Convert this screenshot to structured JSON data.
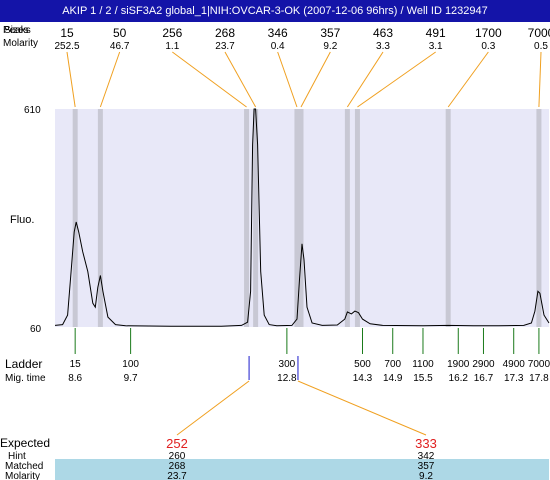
{
  "title": "AKIP 1 / 2 / siSF3A2 global_1|NIH:OVCAR-3-OK (2007-12-06 96hrs) / Well ID 1232947",
  "row_labels": {
    "peaks_overlap_a": "Peaks",
    "peaks_overlap_b": "Sizes",
    "molarity": "Molarity",
    "fluo": "Fluo.",
    "ladder": "Ladder",
    "mig_time": "Mig. time",
    "expected": "Expected",
    "hint": "Hint",
    "matched": "Matched",
    "molarity_bottom": "Molarity"
  },
  "colors": {
    "plot_bg": "#e8e8f8",
    "trace": "#000000",
    "peak_band": "#c8c8d4",
    "guide_line": "#f0a020",
    "ladder_tick": "#1a7a1a",
    "marker_tick": "#1a1acc",
    "expected_value": "#e02020",
    "matched_band": "#add8e6",
    "title_bg": "#1414a8"
  },
  "chart_data": {
    "type": "line",
    "title": "",
    "ylabel": "Fluo.",
    "ylim": [
      60,
      610
    ],
    "y_ticks": [
      "610",
      "60"
    ],
    "xlabel": "Mig. time",
    "xlim": [
      8.2,
      18.0
    ],
    "peaks": [
      {
        "size": "15",
        "molarity": "252.5",
        "mig_time": 8.6
      },
      {
        "size": "50",
        "molarity": "46.7",
        "mig_time": 9.1
      },
      {
        "size": "256",
        "molarity": "1.1",
        "mig_time": 12.0
      },
      {
        "size": "268",
        "molarity": "23.7",
        "mig_time": 12.18
      },
      {
        "size": "346",
        "molarity": "0.4",
        "mig_time": 13.0
      },
      {
        "size": "357",
        "molarity": "9.2",
        "mig_time": 13.08
      },
      {
        "size": "463",
        "molarity": "3.3",
        "mig_time": 14.0
      },
      {
        "size": "491",
        "molarity": "3.1",
        "mig_time": 14.2
      },
      {
        "size": "1700",
        "molarity": "0.3",
        "mig_time": 16.0
      },
      {
        "size": "7000",
        "molarity": "0.5",
        "mig_time": 17.8
      }
    ],
    "ladder": [
      {
        "size": "15",
        "mig_time": "8.6",
        "t": 8.6
      },
      {
        "size": "100",
        "mig_time": "9.7",
        "t": 9.7
      },
      {
        "size": "300",
        "mig_time": "12.8",
        "t": 12.8
      },
      {
        "size": "500",
        "mig_time": "14.3",
        "t": 14.3
      },
      {
        "size": "700",
        "mig_time": "14.9",
        "t": 14.9
      },
      {
        "size": "1100",
        "mig_time": "15.5",
        "t": 15.5
      },
      {
        "size": "1900",
        "mig_time": "16.2",
        "t": 16.2
      },
      {
        "size": "2900",
        "mig_time": "16.7",
        "t": 16.7
      },
      {
        "size": "4900",
        "mig_time": "17.3",
        "t": 17.3
      },
      {
        "size": "7000",
        "mig_time": "17.8",
        "t": 17.8
      }
    ],
    "blue_markers": [
      12.05,
      13.02
    ],
    "trace": [
      [
        8.2,
        64
      ],
      [
        8.35,
        66
      ],
      [
        8.45,
        90
      ],
      [
        8.52,
        200
      ],
      [
        8.58,
        300
      ],
      [
        8.62,
        325
      ],
      [
        8.67,
        300
      ],
      [
        8.75,
        250
      ],
      [
        8.85,
        200
      ],
      [
        8.95,
        120
      ],
      [
        9.0,
        110
      ],
      [
        9.05,
        160
      ],
      [
        9.1,
        190
      ],
      [
        9.15,
        150
      ],
      [
        9.25,
        85
      ],
      [
        9.4,
        66
      ],
      [
        9.6,
        63
      ],
      [
        10.5,
        62
      ],
      [
        11.5,
        62
      ],
      [
        11.9,
        64
      ],
      [
        12.02,
        72
      ],
      [
        12.08,
        150
      ],
      [
        12.12,
        520
      ],
      [
        12.15,
        610
      ],
      [
        12.18,
        610
      ],
      [
        12.22,
        520
      ],
      [
        12.28,
        200
      ],
      [
        12.35,
        90
      ],
      [
        12.45,
        66
      ],
      [
        12.6,
        63
      ],
      [
        12.9,
        64
      ],
      [
        13.0,
        80
      ],
      [
        13.05,
        180
      ],
      [
        13.1,
        270
      ],
      [
        13.14,
        230
      ],
      [
        13.2,
        110
      ],
      [
        13.3,
        70
      ],
      [
        13.5,
        64
      ],
      [
        13.8,
        65
      ],
      [
        13.95,
        80
      ],
      [
        14.0,
        98
      ],
      [
        14.08,
        93
      ],
      [
        14.15,
        100
      ],
      [
        14.22,
        96
      ],
      [
        14.3,
        80
      ],
      [
        14.45,
        68
      ],
      [
        14.7,
        64
      ],
      [
        15.5,
        63
      ],
      [
        16.0,
        64
      ],
      [
        16.5,
        63
      ],
      [
        17.0,
        63
      ],
      [
        17.5,
        64
      ],
      [
        17.65,
        70
      ],
      [
        17.72,
        100
      ],
      [
        17.78,
        150
      ],
      [
        17.82,
        145
      ],
      [
        17.9,
        90
      ],
      [
        18.0,
        70
      ]
    ],
    "expected": [
      {
        "expected": "252",
        "hint": "260",
        "matched": "268",
        "molarity": "23.7",
        "peak_index": 3
      },
      {
        "expected": "333",
        "hint": "342",
        "matched": "357",
        "molarity": "9.2",
        "peak_index": 5
      }
    ]
  }
}
